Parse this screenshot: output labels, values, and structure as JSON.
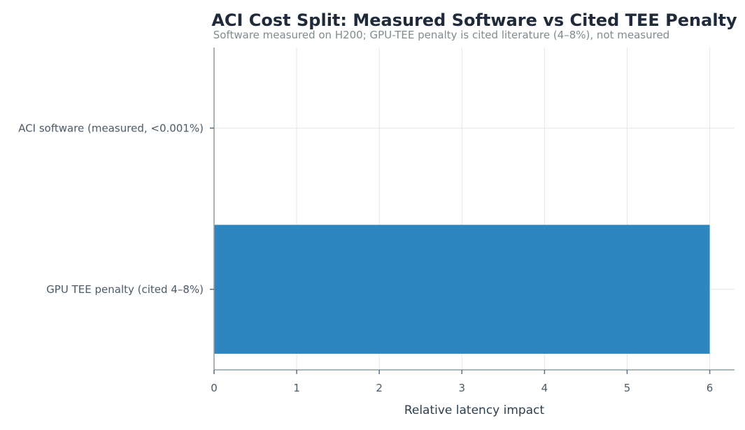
{
  "chart_data": {
    "type": "bar",
    "orientation": "horizontal",
    "title": "ACI Cost Split: Measured Software vs Cited TEE Penalty",
    "subtitle": "Software measured on H200; GPU-TEE penalty is cited literature (4–8%), not measured",
    "xlabel": "Relative latency impact",
    "ylabel": "",
    "categories": [
      "ACI software (measured, <0.001%)",
      "GPU TEE penalty (cited 4–8%)"
    ],
    "values": [
      1e-05,
      6
    ],
    "xlim": [
      0,
      6.3
    ],
    "xticks": [
      0,
      1,
      2,
      3,
      4,
      5,
      6
    ],
    "grid": true,
    "bar_color": "#2e86c1"
  }
}
